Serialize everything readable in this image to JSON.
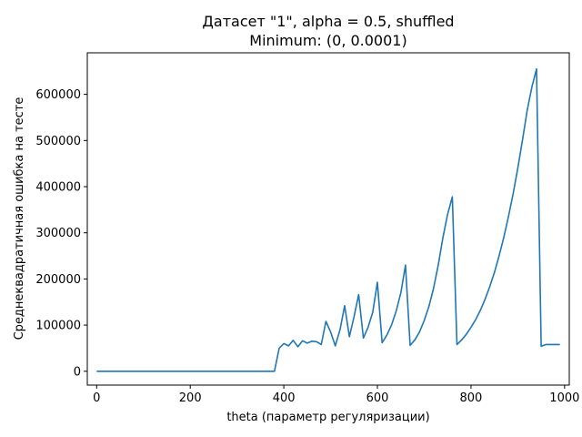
{
  "chart_data": {
    "type": "line",
    "title": "Датасет \"1\", alpha = 0.5, shuffled",
    "subtitle": "Minimum: (0, 0.0001)",
    "xlabel": "theta (параметр регуляризации)",
    "ylabel": "Среднеквадратичная ошибка на тесте",
    "xlim": [
      -20,
      1010
    ],
    "ylim": [
      -30000,
      690000
    ],
    "xticks": [
      0,
      200,
      400,
      600,
      800,
      1000
    ],
    "xtick_labels": [
      "0",
      "200",
      "400",
      "600",
      "800",
      "1000"
    ],
    "yticks": [
      0,
      100000,
      200000,
      300000,
      400000,
      500000,
      600000
    ],
    "ytick_labels": [
      "0",
      "100000",
      "200000",
      "300000",
      "400000",
      "500000",
      "600000"
    ],
    "grid": false,
    "color": "#1f77b4",
    "series": [
      {
        "x": [
          0,
          380,
          390,
          400,
          410,
          420,
          430,
          440,
          450,
          460,
          470,
          480,
          490,
          500,
          510,
          520,
          530,
          540,
          550,
          560,
          570,
          580,
          590,
          600,
          610,
          620,
          630,
          640,
          650,
          660,
          670,
          680,
          690,
          700,
          710,
          720,
          730,
          740,
          750,
          760,
          770,
          780,
          790,
          800,
          810,
          820,
          830,
          840,
          850,
          860,
          870,
          880,
          890,
          900,
          910,
          920,
          930,
          940,
          950,
          960,
          970,
          980,
          990
        ],
        "y": [
          0,
          0,
          50000,
          60000,
          55000,
          67000,
          53000,
          66000,
          61000,
          65000,
          64000,
          58000,
          108000,
          85000,
          55000,
          90000,
          142000,
          75000,
          118000,
          166000,
          72000,
          95000,
          128000,
          193000,
          62000,
          78000,
          100000,
          130000,
          170000,
          230000,
          56000,
          68000,
          85000,
          110000,
          140000,
          180000,
          230000,
          290000,
          340000,
          378000,
          58000,
          68000,
          80000,
          95000,
          112000,
          132000,
          156000,
          183000,
          214000,
          250000,
          290000,
          335000,
          385000,
          440000,
          500000,
          565000,
          615000,
          655000,
          54000,
          58000,
          58000,
          58000,
          58000
        ]
      }
    ]
  }
}
